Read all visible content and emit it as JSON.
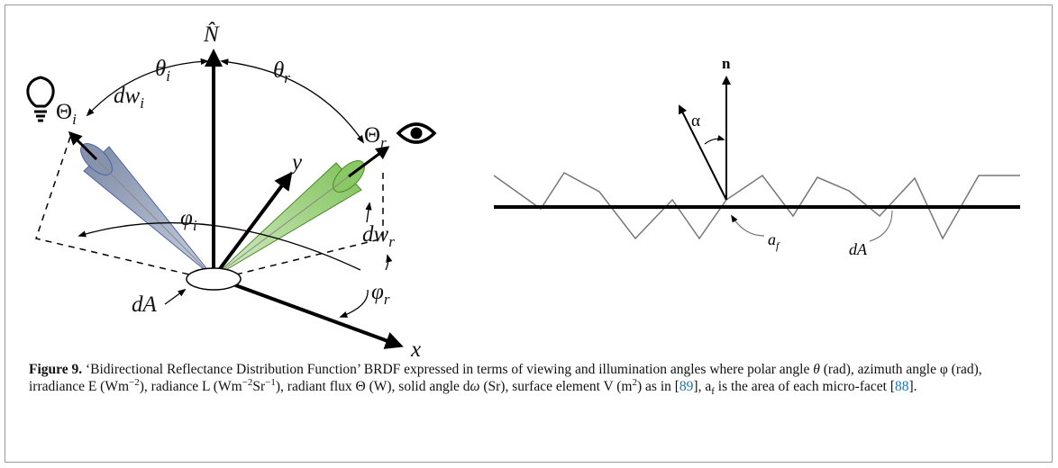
{
  "left_diagram": {
    "normal": "N̂",
    "theta_i": {
      "text": "θ",
      "sub": "i"
    },
    "theta_r": {
      "text": "θ",
      "sub": "r"
    },
    "flux_i": {
      "text": "Θ",
      "sub": "i"
    },
    "flux_r": {
      "text": "Θ",
      "sub": "r"
    },
    "dw_i": {
      "text": "dw",
      "sub": "i"
    },
    "dw_r": {
      "text": "dw",
      "sub": "r"
    },
    "phi_i": {
      "text": "φ",
      "sub": "i"
    },
    "phi_r": {
      "text": "φ",
      "sub": "r"
    },
    "y_axis": "y",
    "x_axis": "x",
    "area": "dA"
  },
  "right_diagram": {
    "normal": "n",
    "angle": "α",
    "facet": {
      "text": "a",
      "sub": "f"
    },
    "area": "dA"
  },
  "caption": {
    "segments": [
      {
        "text": "Figure 9.",
        "style": "bold"
      },
      {
        "text": " ‘Bidirectional Reflectance Distribution Function’ BRDF expressed in terms of viewing and illumination angles where polar angle ",
        "style": "plain"
      },
      {
        "text": "θ",
        "style": "italic"
      },
      {
        "text": " (rad), azimuth angle φ (rad), irradiance E (Wm",
        "style": "plain"
      },
      {
        "text": "−2",
        "style": "sup"
      },
      {
        "text": "), radiance L (Wm",
        "style": "plain"
      },
      {
        "text": "−2",
        "style": "sup"
      },
      {
        "text": "Sr",
        "style": "plain"
      },
      {
        "text": "−1",
        "style": "sup"
      },
      {
        "text": "), radiant flux Θ (W), solid angle d",
        "style": "plain"
      },
      {
        "text": "ω",
        "style": "italic"
      },
      {
        "text": " (Sr), surface element V (m",
        "style": "plain"
      },
      {
        "text": "2",
        "style": "sup"
      },
      {
        "text": ") as in [",
        "style": "plain"
      },
      {
        "text": "89",
        "style": "link"
      },
      {
        "text": "], a",
        "style": "plain"
      },
      {
        "text": "f",
        "style": "sub"
      },
      {
        "text": " is the area of each micro-facet [",
        "style": "plain"
      },
      {
        "text": "88",
        "style": "link"
      },
      {
        "text": "].",
        "style": "plain"
      }
    ]
  }
}
